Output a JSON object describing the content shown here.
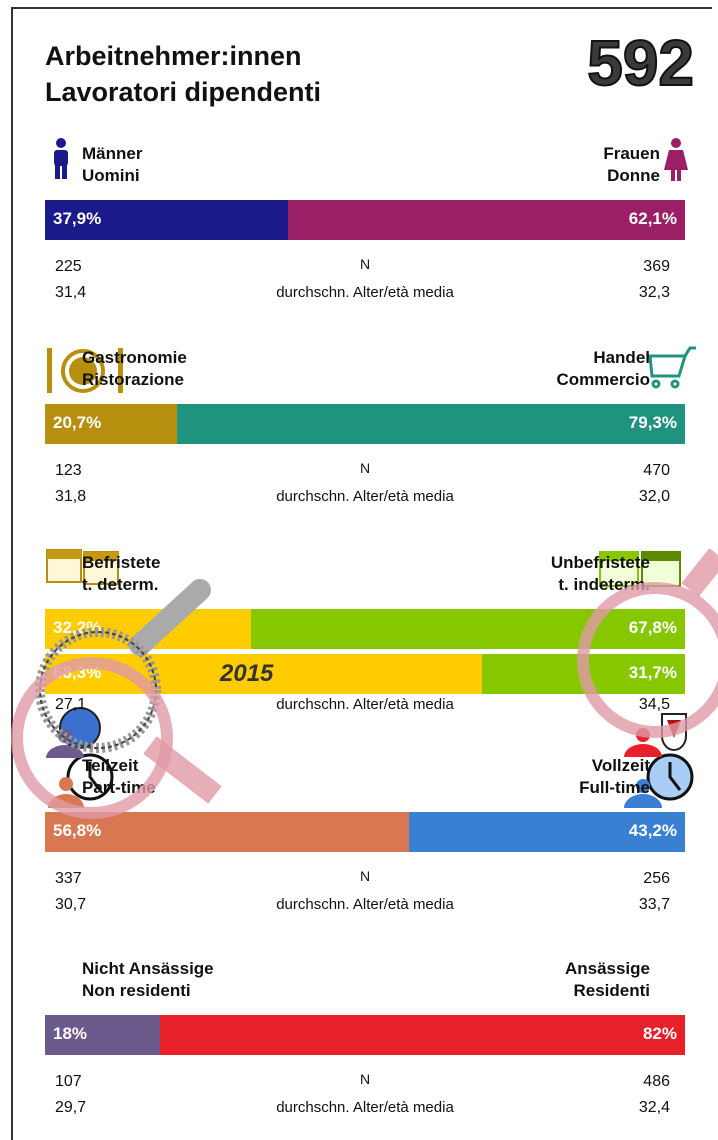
{
  "title": [
    "Arbeitnehmer:innen",
    "Lavoratori dipendenti"
  ],
  "total": 592,
  "n_label": "N",
  "age_label": "durchschn. Alter/età media",
  "sections": [
    {
      "left_labels": [
        "Männer",
        "Uomini"
      ],
      "right_labels": [
        "Frauen",
        "Donne"
      ],
      "colors": [
        "#1c1a8a",
        "#9a1f64"
      ],
      "bars": [
        {
          "left": 37.9,
          "left_label": "37,9%",
          "right": 62.1,
          "right_label": "62,1%"
        }
      ],
      "n": [
        225,
        369
      ],
      "age": [
        "31,4",
        "32,3"
      ]
    },
    {
      "left_labels": [
        "Gastronomie",
        "Ristorazione"
      ],
      "right_labels": [
        "Handel",
        "Commercio"
      ],
      "colors": [
        "#b78f0f",
        "#1f9380"
      ],
      "bars": [
        {
          "left": 20.7,
          "left_label": "20,7%",
          "right": 79.3,
          "right_label": "79,3%"
        }
      ],
      "n": [
        123,
        470
      ],
      "age": [
        "31,8",
        "32,0"
      ]
    },
    {
      "left_labels": [
        "Befristete",
        "t. determ."
      ],
      "right_labels": [
        "Unbefristete",
        "t. indeterm."
      ],
      "colors": [
        "#ffcc00",
        "#86c700"
      ],
      "bars": [
        {
          "left": 32.2,
          "left_label": "32,2%",
          "right": 67.8,
          "right_label": "67,8%"
        },
        {
          "left": 68.3,
          "left_label": "68,3%",
          "right": 31.7,
          "right_label": "31,7%",
          "year": "2015"
        }
      ],
      "age": [
        "27,1",
        "34,5"
      ]
    },
    {
      "left_labels": [
        "Teilzeit",
        "Part-time"
      ],
      "right_labels": [
        "Vollzeit",
        "Full-time"
      ],
      "colors": [
        "#d77853",
        "#3a80d2"
      ],
      "bars": [
        {
          "left": 56.8,
          "left_label": "56,8%",
          "right": 43.2,
          "right_label": "43,2%"
        }
      ],
      "n": [
        337,
        256
      ],
      "age": [
        "30,7",
        "33,7"
      ]
    },
    {
      "left_labels": [
        "Nicht Ansässige",
        "Non residenti"
      ],
      "right_labels": [
        "Ansässige",
        "Residenti"
      ],
      "colors": [
        "#6c5a8c",
        "#e8202a"
      ],
      "bars": [
        {
          "left": 18,
          "left_label": "18%",
          "right": 82,
          "right_label": "82%"
        }
      ],
      "n": [
        107,
        486
      ],
      "age": [
        "29,7",
        "32,4"
      ]
    }
  ]
}
